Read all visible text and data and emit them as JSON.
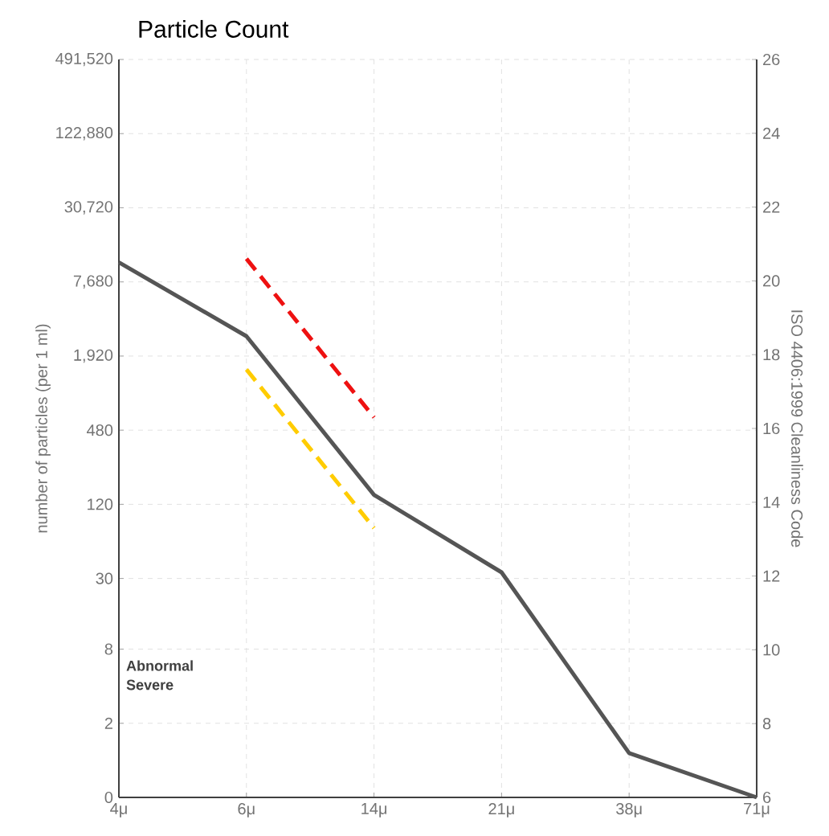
{
  "chart_data": {
    "type": "line",
    "title": "Particle Count",
    "ylabel": "number of particles (per 1 ml)",
    "y2label": "ISO 4406:1999 Cleanliness Code",
    "categories": [
      "4μ",
      "6μ",
      "14μ",
      "21μ",
      "38μ",
      "71μ"
    ],
    "series": [
      {
        "color": "#555555",
        "values": [
          20.5,
          18.5,
          14.2,
          12.1,
          7.2,
          6
        ],
        "line_style": "solid",
        "axis": "y2"
      },
      {
        "color": "#ee1111",
        "values": [
          null,
          20.6,
          16.3,
          null,
          null,
          null
        ],
        "line_style": "dashed",
        "axis": "y2"
      },
      {
        "color": "#ffcc00",
        "values": [
          null,
          17.6,
          13.3,
          null,
          null,
          null
        ],
        "line_style": "dashed",
        "axis": "y2"
      }
    ],
    "log": "y",
    "ylim": [
      0.5,
      491520
    ],
    "yticks": [
      {
        "value": 0.5,
        "label": "0"
      },
      2,
      8,
      30,
      {
        "value": 120,
        "label": "120"
      },
      480,
      {
        "value": 1920,
        "label": "1,920"
      },
      {
        "value": 7680,
        "label": "7,680"
      },
      {
        "value": 30720,
        "label": "30,720"
      },
      {
        "value": 122880,
        "label": "122,880"
      },
      {
        "value": 491520,
        "label": "491,520"
      }
    ],
    "y2lim": [
      6,
      26
    ],
    "y2ticks": [
      6,
      8,
      10,
      12,
      14,
      16,
      18,
      20,
      22,
      24,
      26
    ],
    "grid": true,
    "marker": "none",
    "annotations": [
      "Severe",
      "Abnormal"
    ]
  }
}
